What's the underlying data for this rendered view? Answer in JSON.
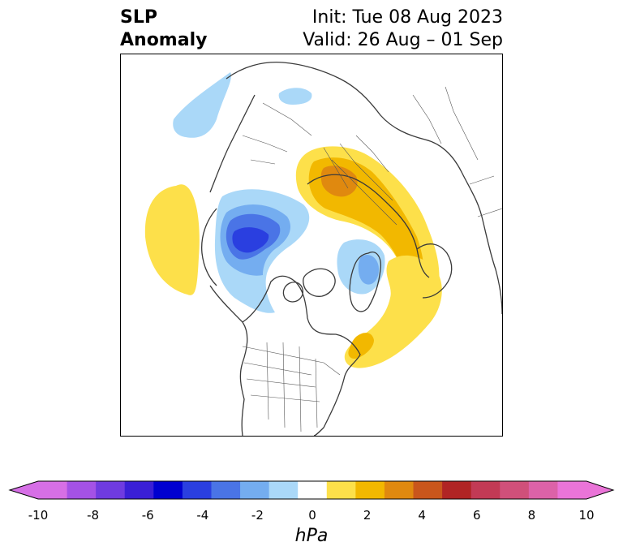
{
  "title": {
    "left_line1": "SLP",
    "left_line2": "Anomaly",
    "right_line1": "Init: Tue 08 Aug 2023",
    "right_line2": "Valid: 26 Aug – 01 Sep"
  },
  "colorbar": {
    "label": "hPa",
    "ticks": [
      "-10",
      "-8",
      "-6",
      "-4",
      "-2",
      "0",
      "2",
      "4",
      "6",
      "8",
      "10"
    ],
    "bins": [
      {
        "range": "-10 to -9",
        "color": "#d66fe6"
      },
      {
        "range": "-9 to -8",
        "color": "#a452e6"
      },
      {
        "range": "-8 to -7",
        "color": "#6f3be0"
      },
      {
        "range": "-7 to -6",
        "color": "#3a1fd6"
      },
      {
        "range": "-6 to -5",
        "color": "#0000d0"
      },
      {
        "range": "-5 to -4",
        "color": "#2a3fe0"
      },
      {
        "range": "-4 to -3",
        "color": "#4a74e6"
      },
      {
        "range": "-3 to -2",
        "color": "#74adf0"
      },
      {
        "range": "-2 to -1",
        "color": "#aad8f8"
      },
      {
        "range": "-1 to 1",
        "color": "#ffffff"
      },
      {
        "range": "1 to 2",
        "color": "#fde04a"
      },
      {
        "range": "2 to 3",
        "color": "#f2b800"
      },
      {
        "range": "3 to 4",
        "color": "#e0890f"
      },
      {
        "range": "4 to 5",
        "color": "#c9561c"
      },
      {
        "range": "5 to 6",
        "color": "#b02424"
      },
      {
        "range": "6 to 7",
        "color": "#c23a55"
      },
      {
        "range": "7 to 8",
        "color": "#d0507a"
      },
      {
        "range": "8 to 9",
        "color": "#dc62a8"
      },
      {
        "range": "9 to 10",
        "color": "#ea74d8"
      }
    ],
    "extend_low_color": "#d66fe6",
    "extend_high_color": "#ea74d8"
  },
  "map": {
    "projection": "north-polar-stereographic",
    "variable": "sea-level-pressure-anomaly",
    "features": [
      {
        "name": "negative-anomaly-center-alaska-bering",
        "min_hpa": -5
      },
      {
        "name": "negative-anomaly-arctic-west-greenland",
        "min_hpa": -3
      },
      {
        "name": "negative-anomaly-east-siberia",
        "min_hpa": -2
      },
      {
        "name": "positive-anomaly-ural-west-siberia",
        "max_hpa": 4
      },
      {
        "name": "positive-anomaly-north-atlantic",
        "max_hpa": 3
      },
      {
        "name": "positive-anomaly-north-pacific",
        "max_hpa": 2
      }
    ]
  }
}
